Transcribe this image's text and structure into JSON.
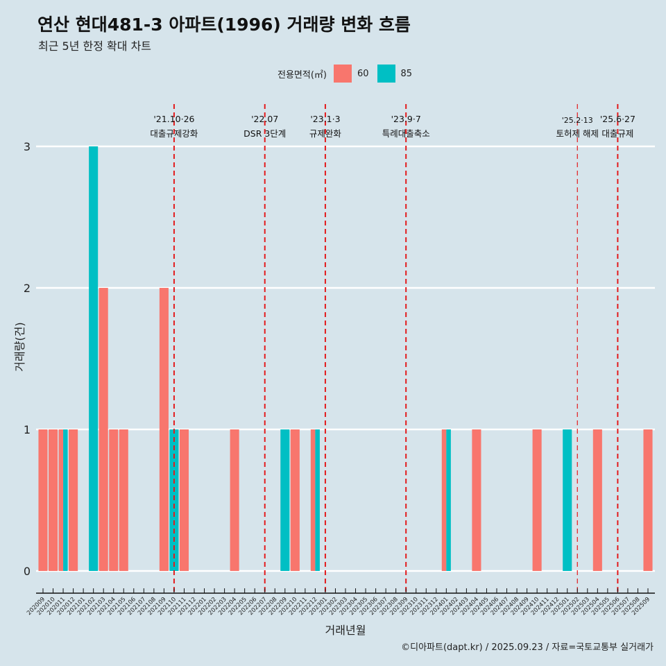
{
  "title": "연산 현대481-3 아파트(1996) 거래량 변화 흐름",
  "subtitle": "최근 5년 한정 확대 차트",
  "caption": "©디아파트(dapt.kr) / 2025.09.23 / 자료=국토교통부 실거래가",
  "colors": {
    "s60": "#f8766d",
    "s85": "#00bfc4",
    "vline": "#e31a1c",
    "grid": "#ffffff"
  },
  "chart_data": {
    "type": "bar",
    "xlabel": "거래년월",
    "ylabel": "거래량(건)",
    "ylim": [
      0,
      3
    ],
    "yticks": [
      0,
      1,
      2,
      3
    ],
    "legend": {
      "title": "전용면적(㎡)",
      "position": "top",
      "entries": [
        "60",
        "85"
      ]
    },
    "categories": [
      "202009",
      "202010",
      "202011",
      "202012",
      "202101",
      "202102",
      "202103",
      "202104",
      "202105",
      "202106",
      "202107",
      "202108",
      "202109",
      "202110",
      "202111",
      "202112",
      "202201",
      "202202",
      "202203",
      "202204",
      "202205",
      "202206",
      "202207",
      "202208",
      "202209",
      "202210",
      "202211",
      "202212",
      "202301",
      "202302",
      "202303",
      "202304",
      "202305",
      "202306",
      "202307",
      "202308",
      "202309",
      "202310",
      "202311",
      "202312",
      "202401",
      "202402",
      "202403",
      "202404",
      "202405",
      "202406",
      "202407",
      "202408",
      "202409",
      "202410",
      "202411",
      "202412",
      "202501",
      "202502",
      "202503",
      "202504",
      "202505",
      "202506",
      "202507",
      "202508",
      "202509"
    ],
    "series": [
      {
        "name": "60",
        "values": {
          "202009": 1,
          "202010": 1,
          "202011": 1,
          "202012": 1,
          "202103": 2,
          "202104": 1,
          "202105": 1,
          "202109": 2,
          "202111": 1,
          "202204": 1,
          "202210": 1,
          "202212": 1,
          "202401": 1,
          "202404": 1,
          "202410": 1,
          "202504": 1,
          "202509": 1
        }
      },
      {
        "name": "85",
        "values": {
          "202011": 1,
          "202102": 3,
          "202110": 1,
          "202209": 1,
          "202212": 1,
          "202401": 1,
          "202501": 1
        }
      }
    ],
    "annotations": [
      {
        "x": "202110",
        "date": "'21.10·26",
        "label": "대출규제강화"
      },
      {
        "x": "202207",
        "date": "'22.07",
        "label": "DSR 3단계"
      },
      {
        "x": "202301",
        "date": "'23.1·3",
        "label": "규제완화"
      },
      {
        "x": "202309",
        "date": "'23.9·7",
        "label": "특례대출축소"
      },
      {
        "x": "202502",
        "date": "'25.2·13",
        "label": "토허제 해제",
        "thin": true
      },
      {
        "x": "202506",
        "date": "'25.6·27",
        "label": "대출규제"
      }
    ]
  }
}
